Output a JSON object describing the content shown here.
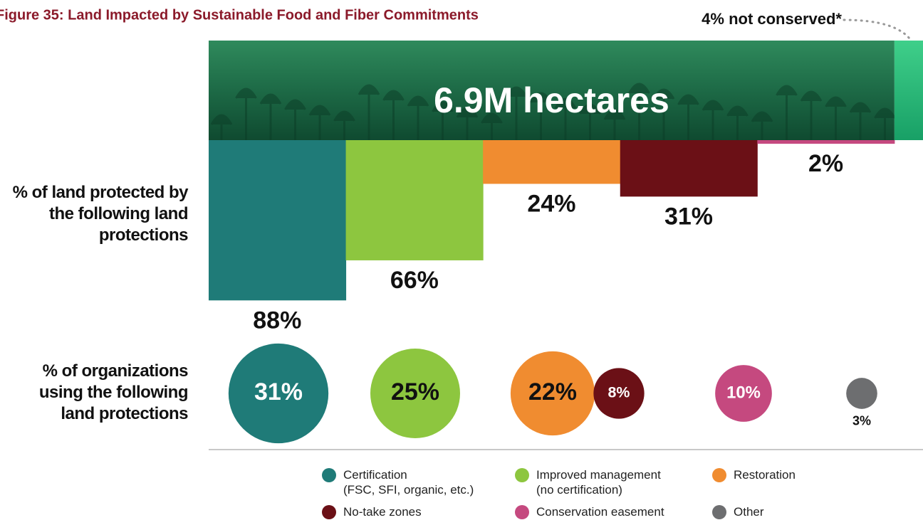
{
  "chart_data": [
    {
      "type": "bar",
      "title": "Figure 35: Land Impacted by Sustainable Food and Fiber Commitments",
      "y_label": "% of land protected by the following land protections",
      "total_label": "6.9M hectares",
      "not_conserved": {
        "value": 4,
        "label": "4% not conserved*"
      },
      "values": [
        88,
        66,
        24,
        31,
        2
      ],
      "value_labels": [
        "88%",
        "66%",
        "24%",
        "31%",
        "2%"
      ],
      "colors": [
        "#1f7b78",
        "#8dc63f",
        "#f08c30",
        "#6b1016",
        "#c5497f"
      ]
    },
    {
      "type": "bubble",
      "y_label": "% of organizations using the following land protections",
      "categories": [
        "Certification\n(FSC, SFI, organic, etc.)",
        "Improved management\n(no certification)",
        "Restoration",
        "No-take zones",
        "Conservation easement",
        "Other"
      ],
      "colors": [
        "#1f7b78",
        "#8dc63f",
        "#f08c30",
        "#6b1016",
        "#c5497f",
        "#6d6e70"
      ],
      "values": [
        31,
        25,
        22,
        8,
        10,
        3
      ],
      "value_labels": [
        "31%",
        "25%",
        "22%",
        "8%",
        "10%",
        "3%"
      ]
    }
  ]
}
